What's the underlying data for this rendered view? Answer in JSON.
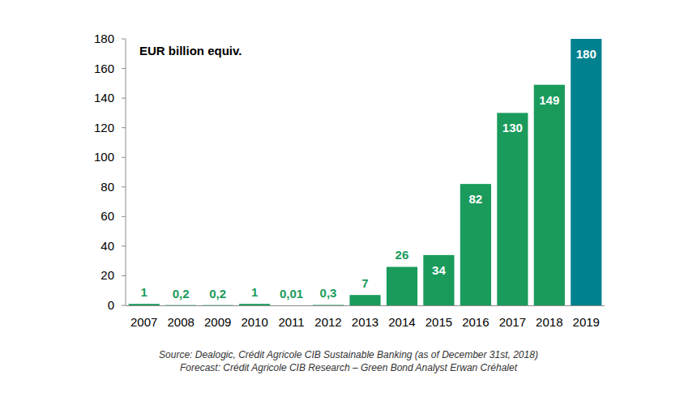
{
  "chart_data": {
    "type": "bar",
    "title": "EUR billion equiv.",
    "categories": [
      "2007",
      "2008",
      "2009",
      "2010",
      "2011",
      "2012",
      "2013",
      "2014",
      "2015",
      "2016",
      "2017",
      "2018",
      "2019"
    ],
    "values": [
      1,
      0.2,
      0.2,
      1,
      0.01,
      0.3,
      7,
      26,
      34,
      82,
      130,
      149,
      180
    ],
    "value_labels": [
      "1",
      "0,2",
      "0,2",
      "1",
      "0,01",
      "0,3",
      "7",
      "26",
      "34",
      "82",
      "130",
      "149",
      "180"
    ],
    "colors": [
      "#1a9b5c",
      "#1a9b5c",
      "#1a9b5c",
      "#1a9b5c",
      "#1a9b5c",
      "#1a9b5c",
      "#1a9b5c",
      "#1a9b5c",
      "#1a9b5c",
      "#1a9b5c",
      "#1a9b5c",
      "#1a9b5c",
      "#00818f"
    ],
    "ylim": [
      0,
      180
    ],
    "yticks": [
      0,
      20,
      40,
      60,
      80,
      100,
      120,
      140,
      160,
      180
    ],
    "grid": false,
    "data_labels": true,
    "annotations": [
      "Source: Dealogic, Crédit Agricole CIB Sustainable Banking (as of December 31st, 2018)",
      "Forecast: Crédit Agricole CIB Research – Green Bond Analyst Erwan Créhalet"
    ]
  }
}
